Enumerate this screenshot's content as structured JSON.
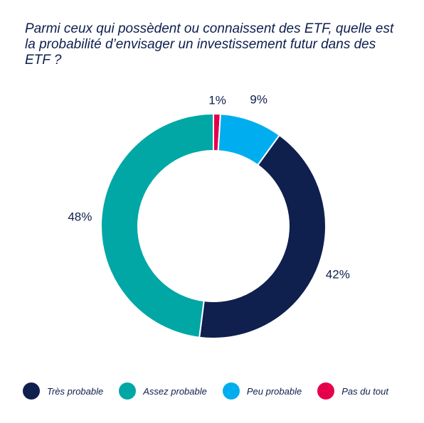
{
  "chart_data": {
    "type": "pie",
    "title": "Parmi ceux qui possèdent ou connaissent des ETF, quelle est la probabilité d’envisager un investissement futur dans des ETF ?",
    "donut": true,
    "legend_position": "bottom",
    "categories": [
      "Très probable",
      "Assez probable",
      "Peu probable",
      "Pas du tout"
    ],
    "values": [
      42,
      48,
      9,
      1
    ],
    "labels": [
      "42%",
      "48%",
      "9%",
      "1%"
    ],
    "colors": [
      "#0f1f4e",
      "#00a7a5",
      "#00aeef",
      "#e6004c"
    ],
    "series": [
      {
        "name": "Très probable",
        "value": 42,
        "label": "42%",
        "color": "#0f1f4e"
      },
      {
        "name": "Assez probable",
        "value": 48,
        "label": "48%",
        "color": "#00a7a5"
      },
      {
        "name": "Peu probable",
        "value": 9,
        "label": "9%",
        "color": "#00aeef"
      },
      {
        "name": "Pas du tout",
        "value": 1,
        "label": "1%",
        "color": "#e6004c"
      }
    ]
  }
}
